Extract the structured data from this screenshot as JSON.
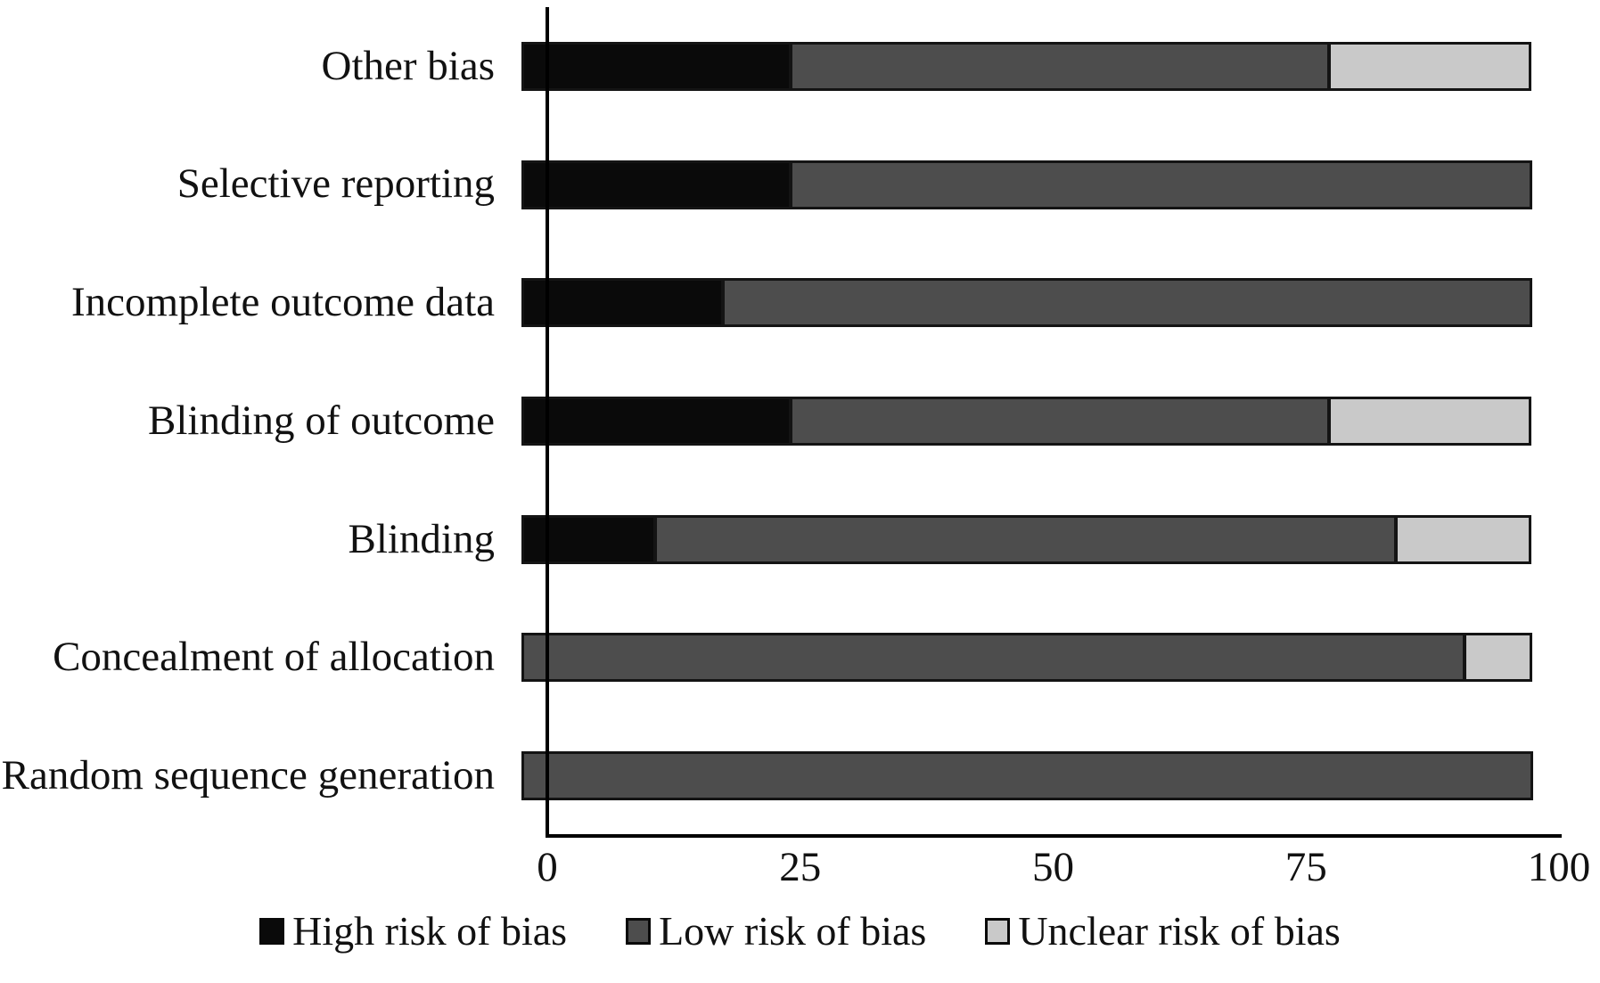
{
  "chart_data": {
    "type": "bar",
    "orientation": "horizontal",
    "stacked": true,
    "title": "",
    "xlabel": "",
    "ylabel": "",
    "xlim": [
      0,
      100
    ],
    "x_ticks": [
      "0",
      "25",
      "50",
      "75",
      "100"
    ],
    "grid": false,
    "legend_position": "bottom",
    "categories_top_to_bottom": [
      "Other bias",
      "Selective reporting",
      "Incomplete outcome data",
      "Blinding of outcome",
      "Blinding",
      "Concealment of allocation",
      "Random sequence generation"
    ],
    "series": [
      {
        "name": "High risk of bias",
        "color": "#0a0a0a",
        "values": [
          26.7,
          26.7,
          20.0,
          26.7,
          13.3,
          0,
          0
        ]
      },
      {
        "name": "Low risk of bias",
        "color": "#4d4d4d",
        "values": [
          53.3,
          73.3,
          80.0,
          53.3,
          73.3,
          93.3,
          100.0
        ]
      },
      {
        "name": "Unclear risk of bias",
        "color": "#c9c9c9",
        "values": [
          20.0,
          0,
          0,
          20.0,
          13.4,
          6.7,
          0
        ]
      }
    ],
    "colors": {
      "bar_border": "#141414",
      "axis": "#000000",
      "text": "#111111",
      "background": "#ffffff"
    }
  }
}
